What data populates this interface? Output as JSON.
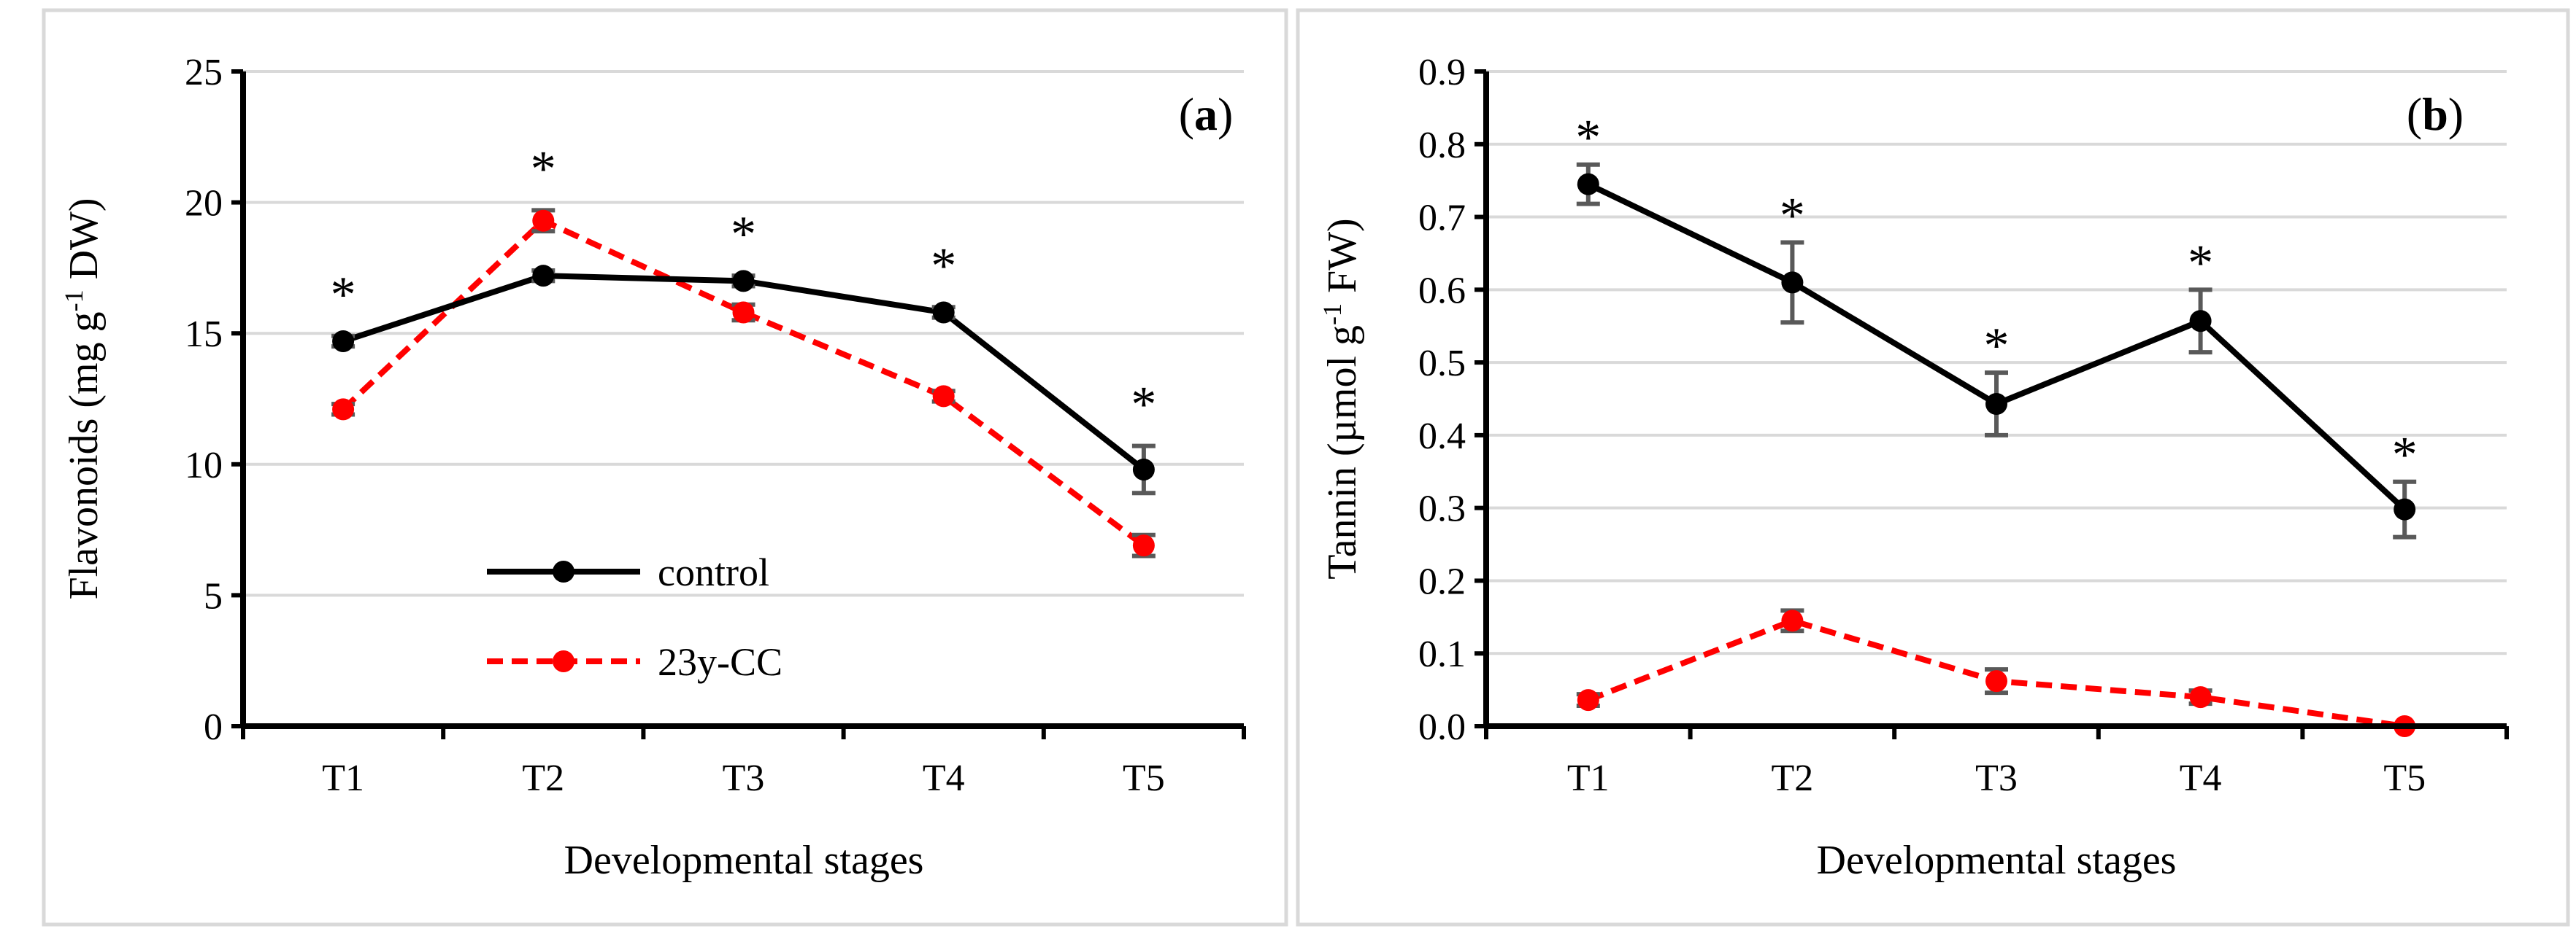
{
  "colors": {
    "control": "#000000",
    "treatment": "#ff0000",
    "errorbar": "#595959",
    "grid": "#d9d9d9",
    "frame": "#d9d9d9"
  },
  "chart_data": [
    {
      "type": "line",
      "panel_label": "(a)",
      "panel_letter": "a",
      "xlabel": "Developmental stages",
      "ylabel_main": "Flavonoids (mg g",
      "ylabel_sup": "-1",
      "ylabel_end": " DW)",
      "categories": [
        "T1",
        "T2",
        "T3",
        "T4",
        "T5"
      ],
      "ylim": [
        0,
        25
      ],
      "yticks": [
        "0",
        "5",
        "10",
        "15",
        "20",
        "25"
      ],
      "grid": true,
      "legend_position": "lower-left",
      "series": [
        {
          "name": "control",
          "style": "solid",
          "color": "#000000",
          "values": [
            14.7,
            17.2,
            17.0,
            15.8,
            9.8
          ],
          "errors": [
            0.2,
            0.2,
            0.2,
            0.2,
            0.9
          ]
        },
        {
          "name": "23y-CC",
          "style": "dashed",
          "color": "#ff0000",
          "values": [
            12.1,
            19.3,
            15.8,
            12.6,
            6.9
          ],
          "errors": [
            0.2,
            0.4,
            0.3,
            0.2,
            0.4
          ]
        }
      ],
      "annotations": [
        {
          "category": "T1",
          "text": "*"
        },
        {
          "category": "T2",
          "text": "*"
        },
        {
          "category": "T3",
          "text": "*"
        },
        {
          "category": "T4",
          "text": "*"
        },
        {
          "category": "T5",
          "text": "*"
        }
      ],
      "legend_entries": [
        "control",
        "23y-CC"
      ]
    },
    {
      "type": "line",
      "panel_label": "(b)",
      "panel_letter": "b",
      "xlabel": "Developmental stages",
      "ylabel_main": "Tannin (µmol g",
      "ylabel_sup": "-1",
      "ylabel_end": " FW)",
      "categories": [
        "T1",
        "T2",
        "T3",
        "T4",
        "T5"
      ],
      "ylim": [
        0,
        0.9
      ],
      "yticks": [
        "0.0",
        "0.1",
        "0.2",
        "0.3",
        "0.4",
        "0.5",
        "0.6",
        "0.7",
        "0.8",
        "0.9"
      ],
      "grid": true,
      "legend_position": "none",
      "series": [
        {
          "name": "control",
          "style": "solid",
          "color": "#000000",
          "values": [
            0.745,
            0.61,
            0.443,
            0.557,
            0.298
          ],
          "errors": [
            0.027,
            0.055,
            0.043,
            0.043,
            0.038
          ]
        },
        {
          "name": "23y-CC",
          "style": "dashed",
          "color": "#ff0000",
          "values": [
            0.036,
            0.145,
            0.062,
            0.04,
            0.0
          ],
          "errors": [
            0.008,
            0.014,
            0.016,
            0.009,
            0.0
          ]
        }
      ],
      "annotations": [
        {
          "category": "T1",
          "text": "*"
        },
        {
          "category": "T2",
          "text": "*"
        },
        {
          "category": "T3",
          "text": "*"
        },
        {
          "category": "T4",
          "text": "*"
        },
        {
          "category": "T5",
          "text": "*"
        }
      ],
      "legend_entries": []
    }
  ]
}
